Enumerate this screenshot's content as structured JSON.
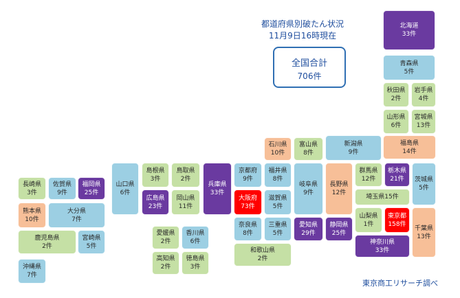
{
  "title": {
    "line1": "都道府県別破たん状況",
    "line2": "11月9日16時現在"
  },
  "total": {
    "label": "全国合計",
    "value": "706件"
  },
  "credit": "東京商工リサーチ調べ",
  "colors": {
    "blue": "#9ccfe3",
    "green": "#c5e0a5",
    "orange": "#f7bf98",
    "purple": "#6a3aa0",
    "red": "#ff0000"
  },
  "prefectures": {
    "hokkaido": {
      "name": "北海道",
      "count": "33件"
    },
    "aomori": {
      "name": "青森県",
      "count": "5件"
    },
    "akita": {
      "name": "秋田県",
      "count": "2件"
    },
    "iwate": {
      "name": "岩手県",
      "count": "4件"
    },
    "yamagata": {
      "name": "山形県",
      "count": "6件"
    },
    "miyagi": {
      "name": "宮城県",
      "count": "13件"
    },
    "fukushima": {
      "name": "福島県",
      "count": "14件"
    },
    "ishikawa": {
      "name": "石川県",
      "count": "10件"
    },
    "toyama": {
      "name": "富山県",
      "count": "8件"
    },
    "niigata": {
      "name": "新潟県",
      "count": "9件"
    },
    "nagasaki": {
      "name": "長崎県",
      "count": "3件"
    },
    "saga": {
      "name": "佐賀県",
      "count": "9件"
    },
    "fukuoka": {
      "name": "福岡県",
      "count": "25件"
    },
    "yamaguchi": {
      "name": "山口県",
      "count": "6件"
    },
    "shimane": {
      "name": "島根県",
      "count": "3件"
    },
    "tottori": {
      "name": "鳥取県",
      "count": "2件"
    },
    "hyogo": {
      "name": "兵庫県",
      "count": "33件"
    },
    "kyoto": {
      "name": "京都府",
      "count": "9件"
    },
    "fukui": {
      "name": "福井県",
      "count": "8件"
    },
    "gifu": {
      "name": "岐阜県",
      "count": "9件"
    },
    "nagano": {
      "name": "長野県",
      "count": "12件"
    },
    "gunma": {
      "name": "群馬県",
      "count": "12件"
    },
    "tochigi": {
      "name": "栃木県",
      "count": "21件"
    },
    "ibaraki": {
      "name": "茨城県",
      "count": "5件"
    },
    "kumamoto": {
      "name": "熊本県",
      "count": "10件"
    },
    "oita": {
      "name": "大分県",
      "count": "7件"
    },
    "hiroshima": {
      "name": "広島県",
      "count": "23件"
    },
    "okayama": {
      "name": "岡山県",
      "count": "11件"
    },
    "osaka": {
      "name": "大阪府",
      "count": "73件"
    },
    "shiga": {
      "name": "滋賀県",
      "count": "5件"
    },
    "saitama": {
      "name": "埼玉県",
      "count": "15件"
    },
    "kagoshima": {
      "name": "鹿児島県",
      "count": "2件"
    },
    "miyazaki": {
      "name": "宮崎県",
      "count": "5件"
    },
    "ehime": {
      "name": "愛媛県",
      "count": "2件"
    },
    "kagawa": {
      "name": "香川県",
      "count": "6件"
    },
    "nara": {
      "name": "奈良県",
      "count": "8件"
    },
    "mie": {
      "name": "三重県",
      "count": "5件"
    },
    "aichi": {
      "name": "愛知県",
      "count": "29件"
    },
    "shizuoka": {
      "name": "静岡県",
      "count": "25件"
    },
    "yamanashi": {
      "name": "山梨県",
      "count": "1件"
    },
    "tokyo": {
      "name": "東京都",
      "count": "158件"
    },
    "chiba": {
      "name": "千葉県",
      "count": "13件"
    },
    "kochi": {
      "name": "高知県",
      "count": "2件"
    },
    "tokushima": {
      "name": "徳島県",
      "count": "3件"
    },
    "wakayama": {
      "name": "和歌山県",
      "count": "2件"
    },
    "kanagawa": {
      "name": "神奈川県",
      "count": "33件"
    },
    "okinawa": {
      "name": "沖縄県",
      "count": "7件"
    }
  }
}
